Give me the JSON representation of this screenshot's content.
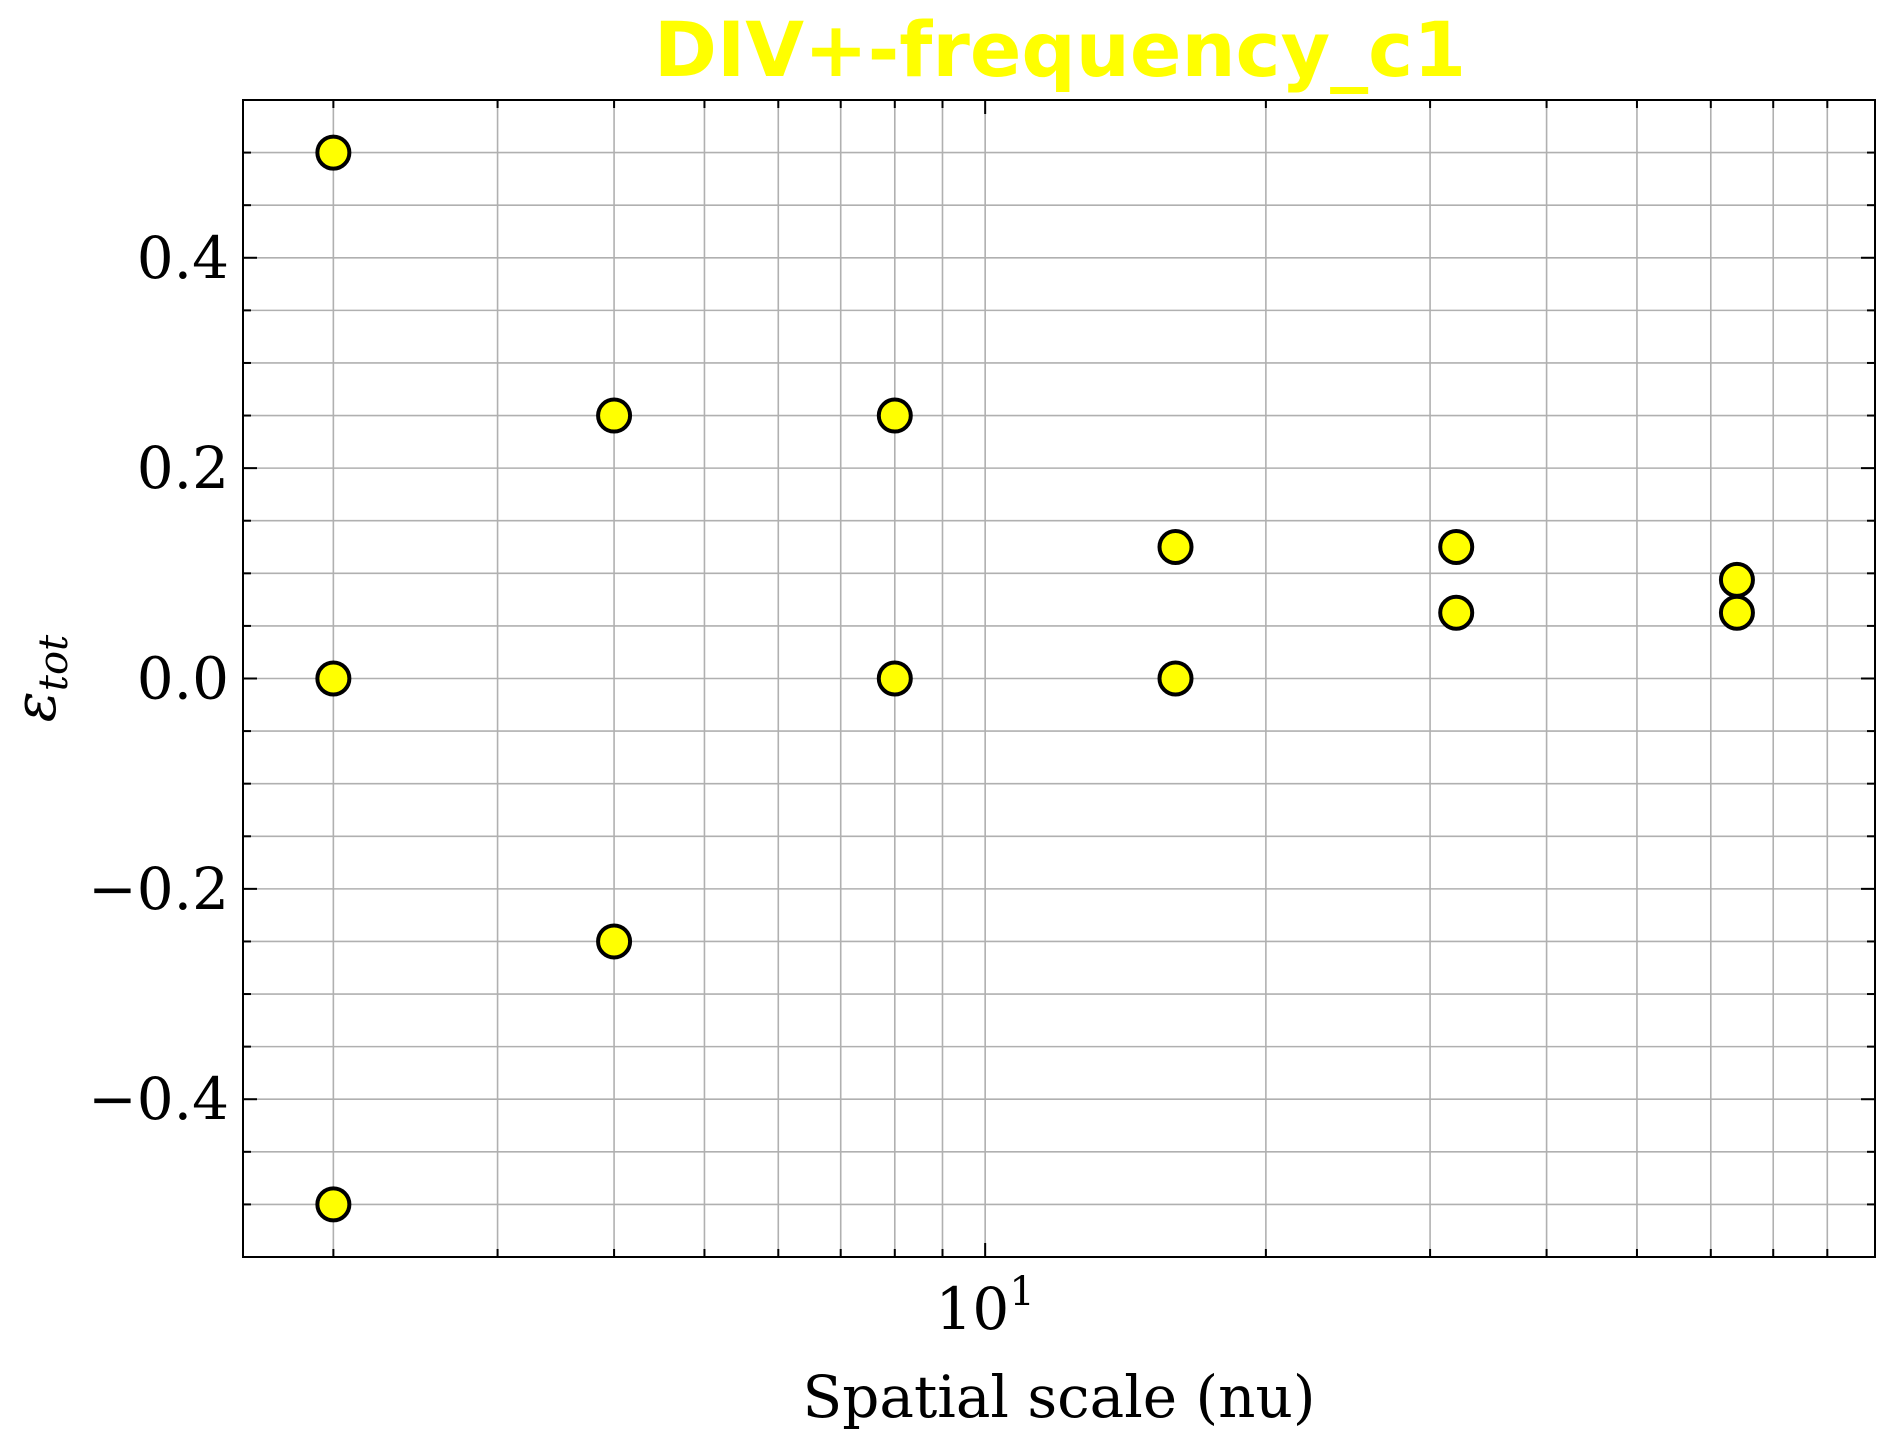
{
  "chart_data": {
    "type": "scatter",
    "title": "DIV+-frequency_c1",
    "xlabel": "Spatial scale (nu)",
    "ylabel": "ε_tot",
    "ylabel_main": "ε",
    "ylabel_sub": "tot",
    "x_scale": "log",
    "xlim": [
      1.6,
      90
    ],
    "ylim": [
      -0.55,
      0.55
    ],
    "x_major_ticks": [
      10
    ],
    "x_tick_labels": [
      {
        "base": "10",
        "exp": "1"
      }
    ],
    "y_ticks": [
      -0.4,
      -0.2,
      0.0,
      0.2,
      0.4
    ],
    "y_tick_labels": [
      "−0.4",
      "−0.2",
      "0.0",
      "0.2",
      "0.4"
    ],
    "grid": true,
    "colors": {
      "marker": "#ffff00",
      "title": "#ffff00",
      "edge": "#000000",
      "grid": "#b0b0b0"
    },
    "series": [
      {
        "points": [
          {
            "x": 2,
            "y": 0.5
          },
          {
            "x": 2,
            "y": 0.0
          },
          {
            "x": 2,
            "y": -0.5
          },
          {
            "x": 4,
            "y": 0.25
          },
          {
            "x": 4,
            "y": -0.25
          },
          {
            "x": 8,
            "y": 0.25
          },
          {
            "x": 8,
            "y": 0.0
          },
          {
            "x": 16,
            "y": 0.125
          },
          {
            "x": 16,
            "y": 0.0
          },
          {
            "x": 32,
            "y": 0.125
          },
          {
            "x": 32,
            "y": 0.0625
          },
          {
            "x": 64,
            "y": 0.09375
          },
          {
            "x": 64,
            "y": 0.0625
          }
        ]
      }
    ]
  }
}
